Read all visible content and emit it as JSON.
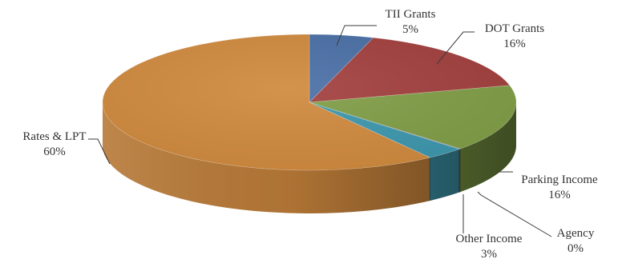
{
  "chart_data": {
    "type": "pie",
    "style": "3d",
    "title": "",
    "categories": [
      "TII Grants",
      "DOT Grants",
      "Parking Income",
      "Agency",
      "Other Income",
      "Rates & LPT"
    ],
    "values": [
      5,
      16,
      16,
      0,
      3,
      60
    ],
    "value_labels": [
      "5%",
      "16%",
      "16%",
      "0%",
      "3%",
      "60%"
    ],
    "colors": [
      "#4a6fa6",
      "#a2403e",
      "#809e47",
      "#6b4e8c",
      "#3d97ad",
      "#d08a3e"
    ],
    "legend": "none",
    "data_labels": "outside with leader lines"
  }
}
